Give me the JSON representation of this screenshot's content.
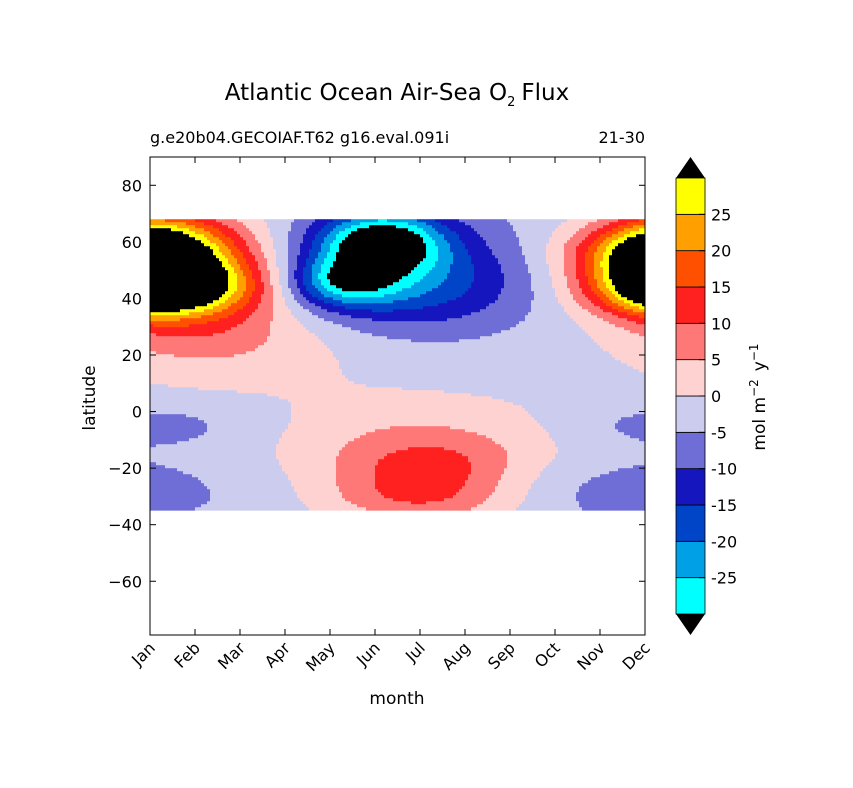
{
  "chart_data": {
    "type": "filled-contour",
    "title_main": "Atlantic Ocean Air-Sea O",
    "title_sub": "2",
    "title_tail": "Flux",
    "case_label": "g.e20b04.GECOIAF.T62 g16.eval.091i",
    "years_label": "21-30",
    "xlabel": "month",
    "ylabel": "latitude",
    "x_ticks": [
      "Jan",
      "Feb",
      "Mar",
      "Apr",
      "May",
      "Jun",
      "Jul",
      "Aug",
      "Sep",
      "Oct",
      "Nov",
      "Dec"
    ],
    "y_ticks": [
      {
        "value": 80,
        "label": "80"
      },
      {
        "value": 60,
        "label": "60"
      },
      {
        "value": 40,
        "label": "40"
      },
      {
        "value": 20,
        "label": "20"
      },
      {
        "value": 0,
        "label": "0"
      },
      {
        "value": -20,
        "label": "−20"
      },
      {
        "value": -40,
        "label": "−40"
      },
      {
        "value": -60,
        "label": "−60"
      }
    ],
    "ylim": [
      -79,
      90
    ],
    "xlim": [
      0,
      11
    ],
    "data_lat_range": [
      -34,
      68
    ],
    "colorbar": {
      "label_main": "mol m",
      "label_exp1": "−2",
      "label_mid": "y",
      "label_exp2": "−1",
      "levels": [
        -30,
        -25,
        -20,
        -15,
        -10,
        -5,
        0,
        5,
        10,
        15,
        20,
        25,
        30
      ],
      "tick_labels": [
        "-25",
        "-20",
        "-15",
        "-10",
        "-5",
        "0",
        "5",
        "10",
        "15",
        "20",
        "25"
      ],
      "colors": [
        "#00ffff",
        "#00a0e6",
        "#0044c8",
        "#1616be",
        "#6e6ed6",
        "#ccccee",
        "#ffd2d2",
        "#ff7878",
        "#ff2020",
        "#ff5000",
        "#ffa000",
        "#ffff00"
      ],
      "under_color": "#000000",
      "over_color": "#000000"
    },
    "grid": false
  }
}
